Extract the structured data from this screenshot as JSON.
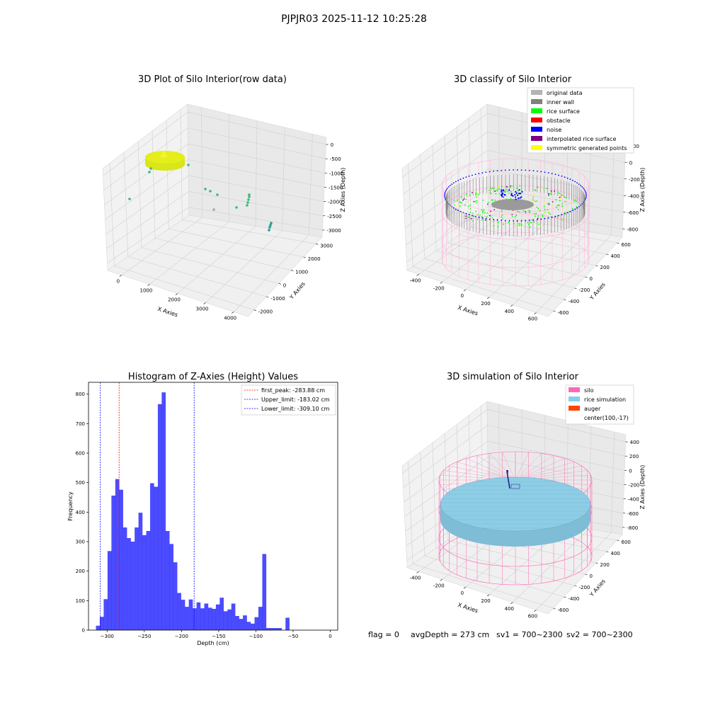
{
  "figure_title": "PJPJR03 2025-11-12 10:25:28",
  "status_line": {
    "flag": "flag = 0",
    "avg_depth": "avgDepth = 273 cm",
    "sv1": "sv1 = 700~2300",
    "sv2": "sv2 = 700~2300"
  },
  "chart_data": [
    {
      "type": "scatter",
      "projection": "3d",
      "title": "3D Plot of Silo Interior(row data)",
      "xlabel": "X Axies",
      "ylabel": "Y Axies",
      "zlabel": "Z Axies (Depth)",
      "x_ticks": [
        "0",
        "1000",
        "2000",
        "3000",
        "4000"
      ],
      "y_ticks": [
        "-2000",
        "-1000",
        "0",
        "1000",
        "2000",
        "3000"
      ],
      "z_ticks": [
        "0",
        "-500",
        "-1000",
        "-1500",
        "-2000",
        "-2500",
        "-3000"
      ],
      "colors": {
        "surface": "#e4ee1a",
        "points": "#3cb878"
      }
    },
    {
      "type": "scatter",
      "projection": "3d",
      "title": "3D classify of Silo Interior",
      "xlabel": "X Axies",
      "ylabel": "Y Axies",
      "zlabel": "Z Axies (Depth)",
      "x_ticks": [
        "-400",
        "-200",
        "0",
        "200",
        "400",
        "600"
      ],
      "y_ticks": [
        "-600",
        "-400",
        "-200",
        "0",
        "200",
        "400",
        "600"
      ],
      "z_ticks": [
        "200",
        "0",
        "-200",
        "-400",
        "-600",
        "-800"
      ],
      "legend": {
        "placement": "top-right",
        "entries": [
          {
            "label": "original data",
            "color": "#b3b3b3"
          },
          {
            "label": "inner wall",
            "color": "#808080"
          },
          {
            "label": "rice surface",
            "color": "#00ff00"
          },
          {
            "label": "obstacle",
            "color": "#ff0000"
          },
          {
            "label": "noise",
            "color": "#0000ff"
          },
          {
            "label": "interpolated rice surface",
            "color": "#800080"
          },
          {
            "label": "symmetric generated points",
            "color": "#ffff00"
          }
        ]
      }
    },
    {
      "type": "bar",
      "title": "Histogram of Z-Axies (Height) Values",
      "xlabel": "Depth (cm)",
      "ylabel": "Frequency",
      "xlim": [
        -325,
        10
      ],
      "ylim": [
        0,
        840
      ],
      "x_ticks": [
        -300,
        -250,
        -200,
        -150,
        -100,
        -50,
        0
      ],
      "y_ticks": [
        0,
        100,
        200,
        300,
        400,
        500,
        600,
        700,
        800
      ],
      "bin_start": -315,
      "bin_width": 5.2,
      "bar_color": "#0000ff",
      "values": [
        15,
        45,
        105,
        268,
        456,
        512,
        476,
        348,
        312,
        300,
        348,
        398,
        322,
        336,
        498,
        486,
        766,
        806,
        336,
        292,
        230,
        126,
        103,
        79,
        104,
        74,
        94,
        74,
        90,
        76,
        72,
        87,
        110,
        64,
        70,
        90,
        48,
        38,
        50,
        28,
        22,
        44,
        79,
        258,
        7,
        7,
        7,
        7,
        0,
        42
      ],
      "vlines": [
        {
          "label": "first_peak: -283.88 cm",
          "x": -283.88,
          "color": "#ff0000"
        },
        {
          "label": "Upper_limit: -183.02 cm",
          "x": -183.02,
          "color": "#0000ff"
        },
        {
          "label": "Lower_limit: -309.10 cm",
          "x": -309.1,
          "color": "#0000ff"
        }
      ],
      "legend": {
        "placement": "top-right"
      }
    },
    {
      "type": "scatter",
      "projection": "3d",
      "title": "3D simulation of Silo Interior",
      "xlabel": "X Axies",
      "ylabel": "Y Axies",
      "zlabel": "Z Axies (Depth)",
      "x_ticks": [
        "-400",
        "-200",
        "0",
        "200",
        "400",
        "600"
      ],
      "y_ticks": [
        "-600",
        "-400",
        "-200",
        "0",
        "200",
        "400",
        "600"
      ],
      "z_ticks": [
        "400",
        "200",
        "0",
        "-200",
        "-400",
        "-600",
        "-800"
      ],
      "legend": {
        "placement": "top-right",
        "entries": [
          {
            "label": "silo",
            "color": "#ff69b4"
          },
          {
            "label": "rice simulation",
            "color": "#87ceeb"
          },
          {
            "label": "auger",
            "color": "#ff4500"
          },
          {
            "label": "center(100,-17)",
            "color": "none"
          }
        ]
      }
    }
  ]
}
